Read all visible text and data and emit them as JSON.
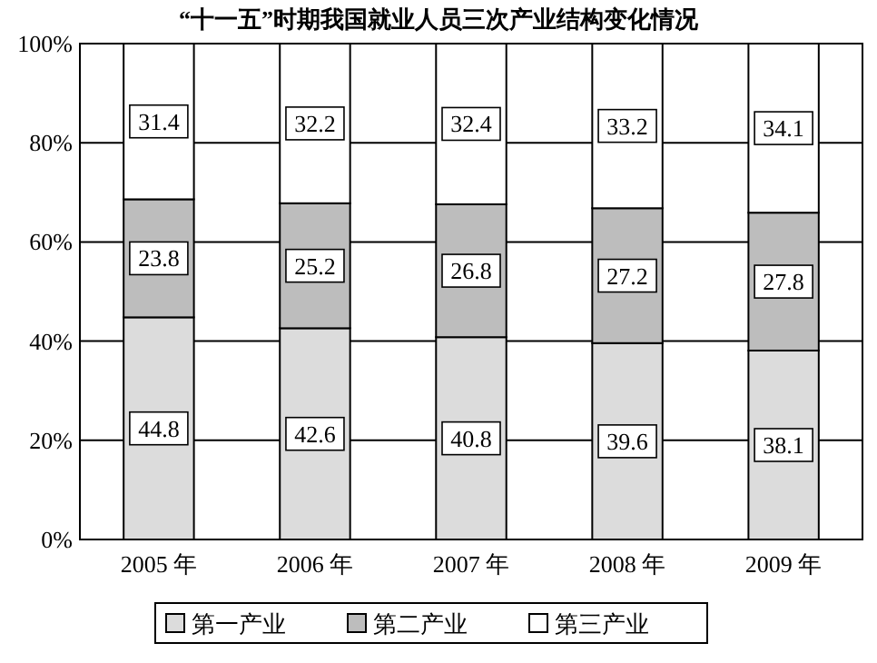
{
  "chart_data": {
    "type": "bar",
    "title": "“十一五”时期我国就业人员三次产业结构变化情况",
    "categories": [
      "2005 年",
      "2006 年",
      "2007 年",
      "2008 年",
      "2009 年"
    ],
    "series": [
      {
        "name": "第一产业",
        "color": "#dcdcdc",
        "values": [
          44.8,
          42.6,
          40.8,
          39.6,
          38.1
        ]
      },
      {
        "name": "第二产业",
        "color": "#bdbdbd",
        "values": [
          23.8,
          25.2,
          26.8,
          27.2,
          27.8
        ]
      },
      {
        "name": "第三产业",
        "color": "#ffffff",
        "values": [
          31.4,
          32.2,
          32.4,
          33.2,
          34.1
        ]
      }
    ],
    "stacked": true,
    "ylim": [
      0,
      100
    ],
    "yticks": [
      {
        "value": 0,
        "label": "0%"
      },
      {
        "value": 20,
        "label": "20%"
      },
      {
        "value": 40,
        "label": "40%"
      },
      {
        "value": 60,
        "label": "60%"
      },
      {
        "value": 80,
        "label": "80%"
      },
      {
        "value": 100,
        "label": "100%"
      }
    ],
    "grid": "y",
    "legend": "bottom",
    "data_labels": true
  }
}
